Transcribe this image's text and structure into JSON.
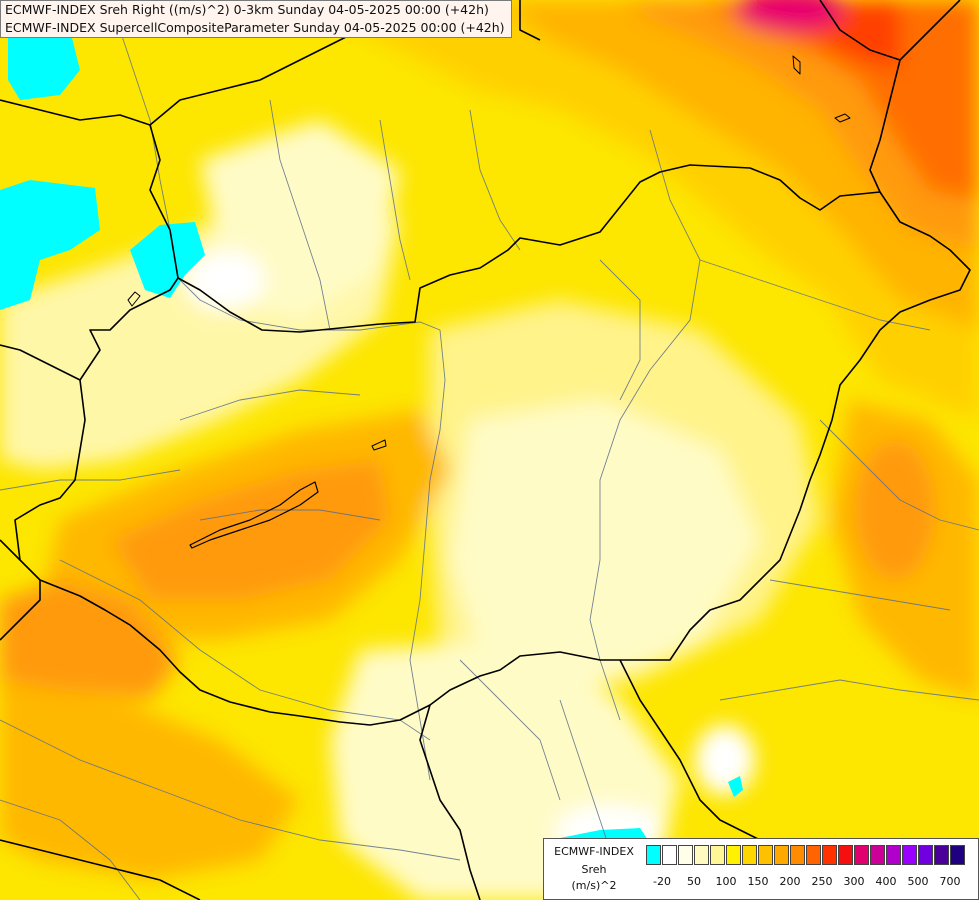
{
  "title": {
    "line1": "ECMWF-INDEX Sreh Right ((m/s)^2) 0-3km Sunday 04-05-2025 00:00 (+42h)",
    "line2": "ECMWF-INDEX SupercellCompositeParameter Sunday 04-05-2025 00:00 (+42h)"
  },
  "legend": {
    "model": "ECMWF-INDEX",
    "variable": "Sreh",
    "unit": "(m/s)^2",
    "colors": [
      "#00ffff",
      "#ffffff",
      "#fffee8",
      "#fffbc0",
      "#fff796",
      "#fff100",
      "#ffd700",
      "#ffc000",
      "#ffa800",
      "#ff8c00",
      "#ff6400",
      "#ff3200",
      "#f50f0f",
      "#e0006e",
      "#cc0099",
      "#b200cc",
      "#9a00ff",
      "#7000e0",
      "#4a0099",
      "#1e0080"
    ],
    "ticks": [
      "-20",
      "50",
      "100",
      "150",
      "200",
      "250",
      "300",
      "400",
      "500",
      "700"
    ]
  },
  "colors": {
    "cyan": "#00ffff",
    "white": "#ffffff",
    "pale": "#fffbc6",
    "light_yellow": "#fff38a",
    "yellow": "#fde600",
    "gold": "#ffd400",
    "light_orange": "#ffb800",
    "orange": "#ff9f10",
    "dark_orange": "#ff7a00",
    "red_orange": "#ff4a00",
    "magenta": "#e8006e",
    "border": "#000000",
    "river": "#5a6e8c"
  }
}
